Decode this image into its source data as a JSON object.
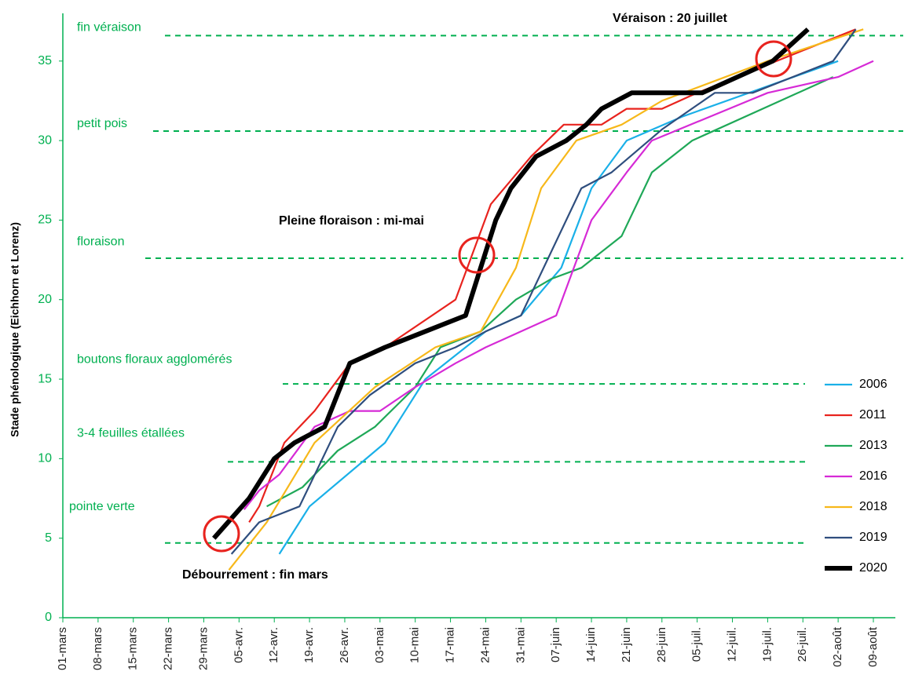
{
  "chart_data": {
    "type": "line",
    "y_label": "Stade phénologique (Eichhorn et Lorenz)",
    "xlim": [
      0,
      165
    ],
    "ylim": [
      0,
      38
    ],
    "xticks": [
      {
        "value": 0,
        "label": "01-mars"
      },
      {
        "value": 7,
        "label": "08-mars"
      },
      {
        "value": 14,
        "label": "15-mars"
      },
      {
        "value": 21,
        "label": "22-mars"
      },
      {
        "value": 28,
        "label": "29-mars"
      },
      {
        "value": 35,
        "label": "05-avr."
      },
      {
        "value": 42,
        "label": "12-avr."
      },
      {
        "value": 49,
        "label": "19-avr."
      },
      {
        "value": 56,
        "label": "26-avr."
      },
      {
        "value": 63,
        "label": "03-mai"
      },
      {
        "value": 70,
        "label": "10-mai"
      },
      {
        "value": 77,
        "label": "17-mai"
      },
      {
        "value": 84,
        "label": "24-mai"
      },
      {
        "value": 91,
        "label": "31-mai"
      },
      {
        "value": 98,
        "label": "07-juin"
      },
      {
        "value": 105,
        "label": "14-juin"
      },
      {
        "value": 112,
        "label": "21-juin"
      },
      {
        "value": 119,
        "label": "28-juin"
      },
      {
        "value": 126,
        "label": "05-juil."
      },
      {
        "value": 133,
        "label": "12-juil."
      },
      {
        "value": 140,
        "label": "19-juil."
      },
      {
        "value": 147,
        "label": "26-juil."
      },
      {
        "value": 154,
        "label": "02-août"
      },
      {
        "value": 161,
        "label": "09-août"
      }
    ],
    "yticks": [
      0,
      5,
      10,
      15,
      20,
      25,
      30,
      35
    ],
    "reference_lines": [
      {
        "label": "fin véraison",
        "value": 36.6
      },
      {
        "label": "petit pois",
        "value": 30.6
      },
      {
        "label": "floraison",
        "value": 22.6
      },
      {
        "label": "boutons floraux agglomérés",
        "value": 14.7
      },
      {
        "label": "3-4 feuilles étallées",
        "value": 9.8
      },
      {
        "label": "pointe verte",
        "value": 4.7
      }
    ],
    "reference_color": "#00b050",
    "annotations": [
      "Véraison : 20 juillet",
      "Pleine floraison : mi-mai",
      "Débourrement : fin mars"
    ],
    "series": [
      {
        "name": "2006",
        "color": "#1ab0e8",
        "x": [
          43,
          49,
          64,
          72,
          84,
          91,
          99,
          105,
          112,
          123,
          154
        ],
        "values": [
          4,
          7,
          11,
          15,
          18,
          19,
          22,
          27,
          30,
          31.5,
          35
        ]
      },
      {
        "name": "2011",
        "color": "#e8231e",
        "x": [
          37,
          39,
          44,
          50,
          57,
          64,
          78,
          85,
          93,
          99.5,
          107,
          112,
          119,
          126,
          157.5
        ],
        "values": [
          6,
          7,
          11,
          13,
          16,
          17,
          20,
          26,
          29,
          31,
          31,
          32,
          32,
          33,
          37
        ]
      },
      {
        "name": "2013",
        "color": "#1fa858",
        "x": [
          40.5,
          47.6,
          54.6,
          62,
          70,
          75,
          83,
          90,
          97,
          103,
          111,
          117,
          125,
          153
        ],
        "values": [
          7,
          8.2,
          10.5,
          12,
          14.5,
          17,
          18,
          20,
          21.3,
          22,
          24,
          28,
          30,
          34
        ]
      },
      {
        "name": "2016",
        "color": "#d62ad6",
        "x": [
          36,
          39,
          43,
          50,
          57,
          63,
          70,
          78,
          84,
          91,
          98,
          105,
          112,
          117,
          140,
          154,
          161
        ],
        "values": [
          6.8,
          8,
          9,
          12,
          13,
          13,
          14.5,
          16,
          17,
          18,
          19,
          25,
          28,
          30,
          33,
          34,
          35
        ]
      },
      {
        "name": "2018",
        "color": "#f7b81a",
        "x": [
          33,
          40.5,
          50,
          62,
          74,
          83,
          90,
          95,
          102,
          111,
          119,
          140,
          159
        ],
        "values": [
          3,
          6,
          11,
          14.5,
          17,
          18,
          22,
          27,
          30,
          31,
          32.5,
          35,
          37
        ]
      },
      {
        "name": "2019",
        "color": "#2f4e7e",
        "x": [
          33.5,
          39,
          47,
          54.6,
          61,
          70,
          78,
          84,
          91,
          103,
          109,
          119,
          129.5,
          137,
          153,
          157.5
        ],
        "values": [
          4,
          6,
          7,
          12,
          14,
          16,
          17,
          18,
          19,
          27,
          28,
          30.7,
          33,
          33,
          35,
          37
        ]
      },
      {
        "name": "2020",
        "color": "#000000",
        "x": [
          30,
          37,
          42,
          46,
          52,
          57,
          64,
          80,
          83,
          86,
          89,
          94,
          100,
          104,
          107,
          113,
          127,
          141,
          148
        ],
        "values": [
          5,
          7.5,
          10,
          11,
          12,
          16,
          17,
          19,
          22,
          25,
          27,
          29,
          30,
          31,
          32,
          33,
          33,
          35,
          37
        ]
      }
    ]
  }
}
